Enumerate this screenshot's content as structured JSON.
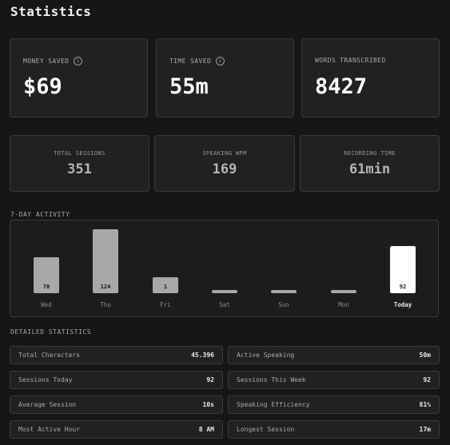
{
  "page": {
    "title": "Statistics"
  },
  "highlights": [
    {
      "label": "MONEY SAVED",
      "value": "$69",
      "info": true
    },
    {
      "label": "TIME SAVED",
      "value": "55m",
      "info": true
    },
    {
      "label": "WORDS TRANSCRIBED",
      "value": "8427",
      "info": false
    }
  ],
  "summary": [
    {
      "label": "TOTAL SESSIONS",
      "value": "351"
    },
    {
      "label": "SPEAKING WPM",
      "value": "169"
    },
    {
      "label": "RECORDING TIME",
      "value": "61min"
    }
  ],
  "activity": {
    "section_title": "7-DAY ACTIVITY",
    "chart_data": {
      "type": "bar",
      "categories": [
        "Wed",
        "Thu",
        "Fri",
        "Sat",
        "Sun",
        "Mon",
        "Today"
      ],
      "values": [
        70,
        124,
        1,
        0,
        0,
        0,
        92
      ],
      "labels": [
        "70",
        "124",
        "1",
        "",
        "",
        "",
        "92"
      ],
      "highlight_category": "Today",
      "colors": {
        "bar": "#a8a8a8",
        "highlight": "#ffffff"
      }
    }
  },
  "details": {
    "section_title": "DETAILED STATISTICS",
    "rows": [
      {
        "key": "Total Characters",
        "value": "45.396"
      },
      {
        "key": "Active Speaking",
        "value": "50m"
      },
      {
        "key": "Sessions Today",
        "value": "92"
      },
      {
        "key": "Sessions This Week",
        "value": "92"
      },
      {
        "key": "Average Session",
        "value": "10s"
      },
      {
        "key": "Speaking Efficiency",
        "value": "81%"
      },
      {
        "key": "Most Active Hour",
        "value": "8 AM"
      },
      {
        "key": "Longest Session",
        "value": "17m"
      }
    ]
  }
}
